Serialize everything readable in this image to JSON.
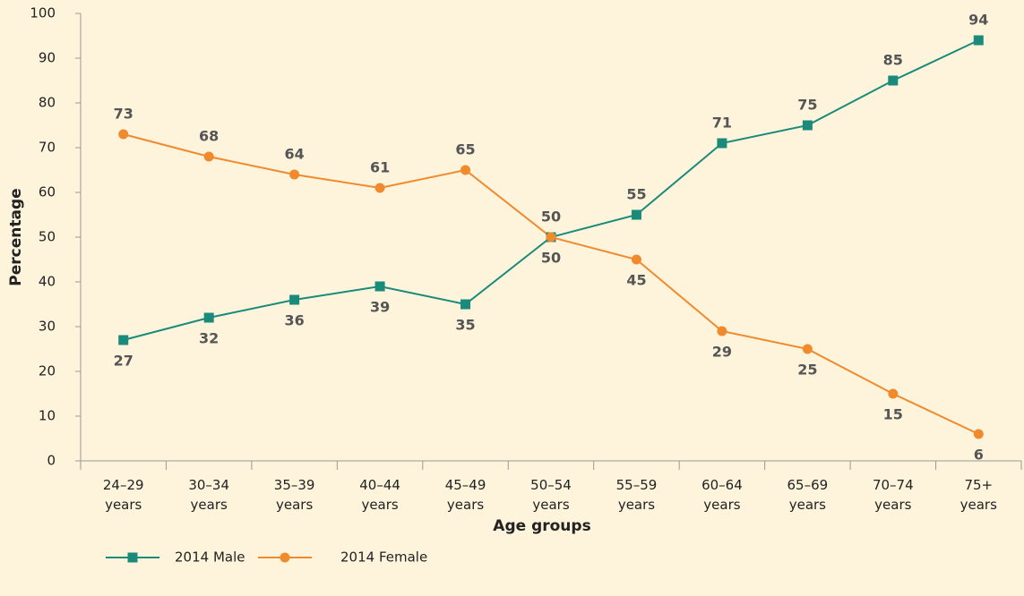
{
  "chart_data": {
    "type": "line",
    "x_label": "Age groups",
    "y_label": "Percentage",
    "categories": [
      "24–29 years",
      "30–34 years",
      "35–39 years",
      "40–44 years",
      "45–49 years",
      "50–54 years",
      "55–59 years",
      "60–64 years",
      "65–69 years",
      "70–74 years",
      "75+ years"
    ],
    "series": [
      {
        "name": "2014 Male",
        "color": "#1a8a7a",
        "marker": "square",
        "values": [
          27,
          32,
          36,
          39,
          35,
          50,
          55,
          71,
          75,
          85,
          94
        ]
      },
      {
        "name": "2014 Female",
        "color": "#f08a2c",
        "marker": "circle",
        "values": [
          73,
          68,
          64,
          61,
          65,
          50,
          45,
          29,
          25,
          15,
          6
        ]
      }
    ],
    "ylim": [
      0,
      100
    ],
    "yticks": [
      0,
      10,
      20,
      30,
      40,
      50,
      60,
      70,
      80,
      90,
      100
    ],
    "legend": "bottom-left"
  }
}
